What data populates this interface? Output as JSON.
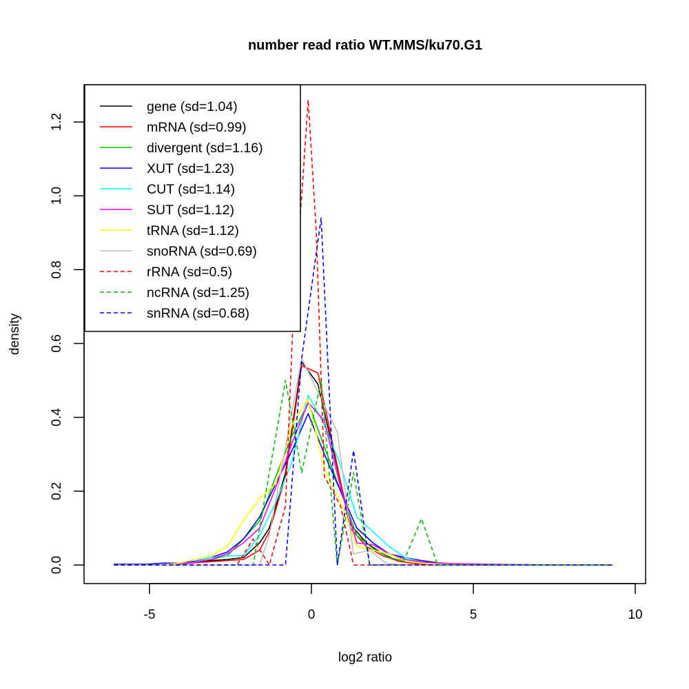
{
  "chart_data": {
    "type": "line",
    "title": "number read ratio WT.MMS/ku70.G1",
    "xlabel": "log2 ratio",
    "ylabel": "density",
    "xlim": [
      -7,
      10.3
    ],
    "ylim": [
      -0.05,
      1.3
    ],
    "xticks": [
      -5,
      0,
      5,
      10
    ],
    "xtick_labels": [
      "-5",
      "0",
      "5",
      "10"
    ],
    "yticks": [
      0.0,
      0.2,
      0.4,
      0.6,
      0.8,
      1.0,
      1.2
    ],
    "ytick_labels": [
      "0.0",
      "0.2",
      "0.4",
      "0.6",
      "0.8",
      "1.0",
      "1.2"
    ],
    "legend_position": "top-left",
    "grid": false,
    "series": [
      {
        "name": "gene (sd=1.04)",
        "color": "#000000",
        "dash": "solid",
        "x": [
          -6.1,
          -5.6,
          -5.1,
          -4.6,
          -4.1,
          -3.6,
          -3.1,
          -2.6,
          -2.1,
          -1.6,
          -1.3,
          -0.8,
          -0.3,
          0.2,
          0.7,
          1.2,
          1.7,
          2.2,
          2.7,
          3.2,
          3.7,
          4.2,
          5.2,
          6.2,
          7.2,
          8.2,
          9.3
        ],
        "y": [
          0,
          0,
          0,
          0,
          0.003,
          0.008,
          0.012,
          0.015,
          0.02,
          0.06,
          0.1,
          0.25,
          0.55,
          0.49,
          0.3,
          0.11,
          0.06,
          0.03,
          0.01,
          0.004,
          0.002,
          0.001,
          0,
          0,
          0,
          0,
          0
        ]
      },
      {
        "name": "mRNA (sd=0.99)",
        "color": "#ff0000",
        "dash": "solid",
        "x": [
          -6.1,
          -5.6,
          -5.1,
          -4.6,
          -4.1,
          -3.6,
          -3.1,
          -2.6,
          -2.1,
          -1.6,
          -1.3,
          -0.8,
          -0.3,
          0.2,
          0.7,
          1.2,
          1.7,
          2.2,
          2.7,
          3.2,
          3.7,
          4.2,
          5.2,
          6.2,
          7.2,
          8.2,
          9.3
        ],
        "y": [
          0,
          0,
          0,
          0,
          0.002,
          0.006,
          0.009,
          0.012,
          0.015,
          0.04,
          0.09,
          0.24,
          0.54,
          0.52,
          0.31,
          0.1,
          0.05,
          0.025,
          0.01,
          0.004,
          0.002,
          0.001,
          0,
          0,
          0,
          0,
          0
        ]
      },
      {
        "name": "divergent (sd=1.16)",
        "color": "#00c000",
        "dash": "solid",
        "x": [
          -6.1,
          -5.6,
          -5.1,
          -4.6,
          -4.1,
          -3.6,
          -3.1,
          -2.6,
          -2.1,
          -1.6,
          -1.1,
          -0.6,
          -0.1,
          0.4,
          0.9,
          1.4,
          1.9,
          2.4,
          2.9,
          3.4,
          3.9,
          4.4,
          5.4,
          6.4,
          7.4,
          8.4,
          9.3
        ],
        "y": [
          0,
          0,
          0,
          0,
          0.003,
          0.008,
          0.015,
          0.025,
          0.07,
          0.12,
          0.24,
          0.35,
          0.44,
          0.32,
          0.2,
          0.08,
          0.045,
          0.02,
          0.01,
          0.005,
          0.002,
          0.001,
          0,
          0,
          0,
          0,
          0
        ]
      },
      {
        "name": "XUT (sd=1.23)",
        "color": "#0000ff",
        "dash": "solid",
        "x": [
          -6.1,
          -5.6,
          -5.1,
          -4.6,
          -4.1,
          -3.6,
          -3.1,
          -2.6,
          -2.1,
          -1.6,
          -1.1,
          -0.6,
          -0.1,
          0.4,
          0.9,
          1.4,
          1.9,
          2.4,
          2.9,
          3.4,
          3.9,
          4.4,
          5.4,
          6.4,
          7.4,
          8.4,
          9.3
        ],
        "y": [
          0.002,
          0.002,
          0.002,
          0.005,
          0.005,
          0.01,
          0.02,
          0.035,
          0.07,
          0.13,
          0.22,
          0.31,
          0.41,
          0.3,
          0.2,
          0.1,
          0.06,
          0.03,
          0.02,
          0.012,
          0.006,
          0.003,
          0.002,
          0.001,
          0,
          0,
          0
        ]
      },
      {
        "name": "CUT (sd=1.14)",
        "color": "#00ffff",
        "dash": "solid",
        "x": [
          -6.1,
          -5.6,
          -5.1,
          -4.6,
          -4.1,
          -3.6,
          -3.1,
          -2.6,
          -2.1,
          -1.6,
          -1.1,
          -0.6,
          -0.1,
          0.4,
          0.9,
          1.4,
          1.9,
          2.4,
          2.9,
          3.4,
          3.9,
          4.4,
          5.4,
          6.4,
          7.4,
          8.4,
          9.3
        ],
        "y": [
          0,
          0,
          0,
          0,
          0.003,
          0.008,
          0.02,
          0.025,
          0.025,
          0.08,
          0.17,
          0.28,
          0.46,
          0.38,
          0.27,
          0.13,
          0.09,
          0.05,
          0.02,
          0.008,
          0.004,
          0.002,
          0.001,
          0,
          0,
          0,
          0
        ]
      },
      {
        "name": "SUT (sd=1.12)",
        "color": "#ff00ff",
        "dash": "solid",
        "x": [
          -6.1,
          -5.6,
          -5.1,
          -4.6,
          -4.1,
          -3.6,
          -3.1,
          -2.6,
          -2.1,
          -1.6,
          -1.1,
          -0.6,
          -0.1,
          0.4,
          0.9,
          1.4,
          1.9,
          2.4,
          2.9,
          3.4,
          3.9,
          4.4,
          5.4,
          6.4,
          7.4,
          8.4,
          9.3
        ],
        "y": [
          0,
          0,
          0,
          0,
          0.002,
          0.007,
          0.015,
          0.03,
          0.06,
          0.1,
          0.21,
          0.33,
          0.44,
          0.39,
          0.21,
          0.06,
          0.055,
          0.03,
          0.015,
          0.008,
          0.005,
          0.004,
          0.002,
          0.001,
          0,
          0,
          0
        ]
      },
      {
        "name": "tRNA (sd=1.12)",
        "color": "#ffff00",
        "dash": "solid",
        "x": [
          -6.1,
          -5.6,
          -5.1,
          -4.6,
          -4.1,
          -3.6,
          -3.1,
          -2.6,
          -2.1,
          -1.6,
          -1.1,
          -0.6,
          -0.1,
          0.4,
          0.9,
          1.4,
          1.9,
          2.4,
          2.9,
          3.4,
          3.9,
          4.4,
          5.4,
          6.4,
          7.4,
          8.4,
          9.3
        ],
        "y": [
          0,
          0,
          0,
          0,
          0.005,
          0.015,
          0.025,
          0.05,
          0.12,
          0.18,
          0.22,
          0.38,
          0.45,
          0.26,
          0.17,
          0.05,
          0.04,
          0.03,
          0.01,
          0.005,
          0.002,
          0.001,
          0,
          0,
          0,
          0,
          0
        ]
      },
      {
        "name": "snoRNA (sd=0.69)",
        "color": "#bebebe",
        "dash": "solid",
        "x": [
          -6.1,
          -5.6,
          -5.1,
          -4.6,
          -4.1,
          -3.6,
          -3.1,
          -2.6,
          -2.1,
          -1.6,
          -1.3,
          -0.8,
          -0.3,
          0.3,
          0.8,
          1.3,
          1.8,
          2.3,
          2.8,
          3.3,
          4.3,
          5.3,
          6.3,
          7.3,
          8.3,
          9.3
        ],
        "y": [
          0,
          0,
          0,
          0,
          0,
          0,
          0,
          0,
          0,
          0,
          0.08,
          0.32,
          0.56,
          0.45,
          0.36,
          0.03,
          0.04,
          0.005,
          0,
          0,
          0,
          0,
          0,
          0,
          0,
          0
        ]
      },
      {
        "name": "rRNA (sd=0.5)",
        "color": "#ff0000",
        "dash": "dashed",
        "x": [
          -6.1,
          -5.1,
          -4.1,
          -3.1,
          -2.3,
          -1.8,
          -1.3,
          -0.8,
          -0.55,
          -0.3,
          -0.1,
          0.15,
          0.4,
          0.9,
          1.3,
          1.4,
          2.4,
          3.4,
          4.4,
          5.4,
          6.4,
          7.4,
          8.4,
          9.3
        ],
        "y": [
          0,
          0,
          0,
          0,
          0,
          0.07,
          0,
          0.16,
          0.7,
          1.0,
          1.26,
          0.9,
          0.24,
          0.16,
          0,
          0,
          0,
          0,
          0,
          0,
          0,
          0,
          0,
          0
        ]
      },
      {
        "name": "ncRNA (sd=1.25)",
        "color": "#00c000",
        "dash": "dashed",
        "x": [
          -6.1,
          -5.1,
          -4.1,
          -3.1,
          -2.3,
          -1.8,
          -0.8,
          -0.3,
          0.3,
          0.8,
          1.3,
          1.8,
          2.3,
          2.8,
          3.4,
          3.9,
          4.4,
          5.4,
          6.4,
          7.4,
          8.4,
          9.3
        ],
        "y": [
          0,
          0,
          0,
          0,
          0,
          0,
          0.5,
          0.25,
          0.5,
          0,
          0.25,
          0,
          0,
          0,
          0.125,
          0,
          0,
          0,
          0,
          0,
          0,
          0
        ]
      },
      {
        "name": "snRNA (sd=0.68)",
        "color": "#0000ff",
        "dash": "dashed",
        "x": [
          -6.1,
          -5.1,
          -4.1,
          -3.1,
          -2.1,
          -1.1,
          -0.8,
          -0.3,
          0.3,
          0.8,
          1.3,
          1.8,
          2.3,
          3.3,
          4.3,
          5.3,
          6.3,
          7.3,
          8.3,
          9.3
        ],
        "y": [
          0,
          0,
          0,
          0,
          0,
          0,
          0,
          0.56,
          0.94,
          0,
          0.31,
          0,
          0,
          0,
          0,
          0,
          0,
          0,
          0,
          0
        ]
      }
    ]
  }
}
